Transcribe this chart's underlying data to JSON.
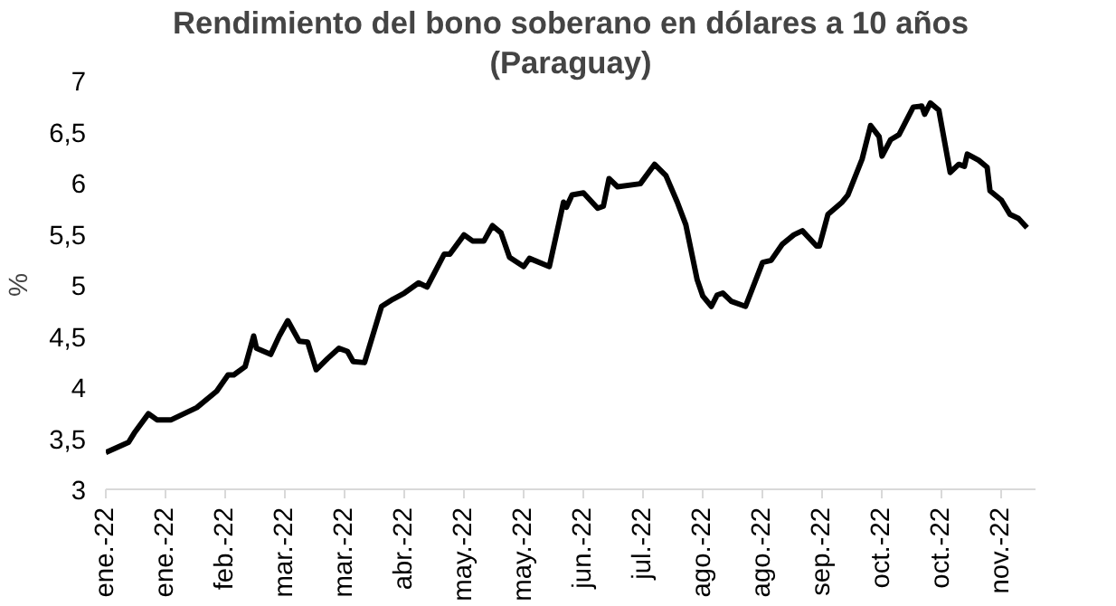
{
  "chart_data": {
    "type": "line",
    "title": "Rendimiento del bono soberano en dólares a 10 años",
    "subtitle": "(Paraguay)",
    "ylabel": "%",
    "xlim": [
      "2022-01-03",
      "2022-11-26"
    ],
    "xticks": [
      {
        "value": "2022-01-03",
        "label": "ene.-22"
      },
      {
        "value": "2022-01-24",
        "label": "ene.-22"
      },
      {
        "value": "2022-02-14",
        "label": "feb.-22"
      },
      {
        "value": "2022-03-07",
        "label": "mar.-22"
      },
      {
        "value": "2022-03-28",
        "label": "mar.-22"
      },
      {
        "value": "2022-04-18",
        "label": "abr.-22"
      },
      {
        "value": "2022-05-09",
        "label": "may.-22"
      },
      {
        "value": "2022-05-30",
        "label": "may.-22"
      },
      {
        "value": "2022-06-20",
        "label": "jun.-22"
      },
      {
        "value": "2022-07-11",
        "label": "jul.-22"
      },
      {
        "value": "2022-08-01",
        "label": "ago.-22"
      },
      {
        "value": "2022-08-22",
        "label": "ago.-22"
      },
      {
        "value": "2022-09-12",
        "label": "sep.-22"
      },
      {
        "value": "2022-10-03",
        "label": "oct.-22"
      },
      {
        "value": "2022-10-24",
        "label": "oct.-22"
      },
      {
        "value": "2022-11-14",
        "label": "nov.-22"
      }
    ],
    "ylim": [
      3,
      7
    ],
    "yticks": [
      {
        "value": 3,
        "label": "3"
      },
      {
        "value": 3.5,
        "label": "3,5"
      },
      {
        "value": 4,
        "label": "4"
      },
      {
        "value": 4.5,
        "label": "4,5"
      },
      {
        "value": 5,
        "label": "5"
      },
      {
        "value": 5.5,
        "label": "5,5"
      },
      {
        "value": 6,
        "label": "6"
      },
      {
        "value": 6.5,
        "label": "6,5"
      },
      {
        "value": 7,
        "label": "7"
      }
    ],
    "grid": false,
    "marker": "none",
    "line_style": "solid",
    "series": [
      {
        "color": "#000000",
        "x": [
          "2022-01-03",
          "2022-01-11",
          "2022-01-13",
          "2022-01-18",
          "2022-01-21",
          "2022-01-26",
          "2022-02-04",
          "2022-02-11",
          "2022-02-15",
          "2022-02-17",
          "2022-02-21",
          "2022-02-24",
          "2022-02-25",
          "2022-03-02",
          "2022-03-05",
          "2022-03-08",
          "2022-03-12",
          "2022-03-15",
          "2022-03-18",
          "2022-03-22",
          "2022-03-26",
          "2022-03-29",
          "2022-03-31",
          "2022-04-04",
          "2022-04-10",
          "2022-04-14",
          "2022-04-18",
          "2022-04-23",
          "2022-04-26",
          "2022-05-02",
          "2022-05-04",
          "2022-05-09",
          "2022-05-12",
          "2022-05-16",
          "2022-05-19",
          "2022-05-22",
          "2022-05-25",
          "2022-05-30",
          "2022-06-01",
          "2022-06-08",
          "2022-06-13",
          "2022-06-14",
          "2022-06-16",
          "2022-06-20",
          "2022-06-25",
          "2022-06-27",
          "2022-06-29",
          "2022-07-02",
          "2022-07-10",
          "2022-07-15",
          "2022-07-19",
          "2022-07-23",
          "2022-07-26",
          "2022-07-30",
          "2022-08-01",
          "2022-08-04",
          "2022-08-06",
          "2022-08-08",
          "2022-08-11",
          "2022-08-16",
          "2022-08-22",
          "2022-08-25",
          "2022-08-29",
          "2022-09-02",
          "2022-09-05",
          "2022-09-10",
          "2022-09-11",
          "2022-09-14",
          "2022-09-19",
          "2022-09-21",
          "2022-09-26",
          "2022-09-29",
          "2022-10-02",
          "2022-10-03",
          "2022-10-06",
          "2022-10-09",
          "2022-10-14",
          "2022-10-17",
          "2022-10-18",
          "2022-10-20",
          "2022-10-23",
          "2022-10-27",
          "2022-10-30",
          "2022-11-01",
          "2022-11-02",
          "2022-11-06",
          "2022-11-09",
          "2022-11-10",
          "2022-11-14",
          "2022-11-17",
          "2022-11-20",
          "2022-11-23"
        ],
        "values": [
          3.36,
          3.46,
          3.55,
          3.74,
          3.68,
          3.68,
          3.8,
          3.96,
          4.12,
          4.12,
          4.2,
          4.5,
          4.38,
          4.32,
          4.5,
          4.65,
          4.45,
          4.44,
          4.17,
          4.28,
          4.38,
          4.35,
          4.25,
          4.24,
          4.79,
          4.86,
          4.92,
          5.02,
          4.98,
          5.3,
          5.3,
          5.49,
          5.43,
          5.43,
          5.58,
          5.51,
          5.27,
          5.18,
          5.26,
          5.18,
          5.81,
          5.76,
          5.88,
          5.9,
          5.75,
          5.77,
          6.04,
          5.96,
          5.99,
          6.18,
          6.07,
          5.81,
          5.59,
          5.05,
          4.89,
          4.79,
          4.9,
          4.92,
          4.84,
          4.79,
          5.22,
          5.24,
          5.4,
          5.49,
          5.53,
          5.38,
          5.38,
          5.69,
          5.81,
          5.88,
          6.23,
          6.56,
          6.45,
          6.26,
          6.42,
          6.47,
          6.74,
          6.75,
          6.67,
          6.78,
          6.71,
          6.1,
          6.18,
          6.16,
          6.28,
          6.22,
          6.15,
          5.92,
          5.83,
          5.69,
          5.65,
          5.56
        ]
      }
    ]
  }
}
